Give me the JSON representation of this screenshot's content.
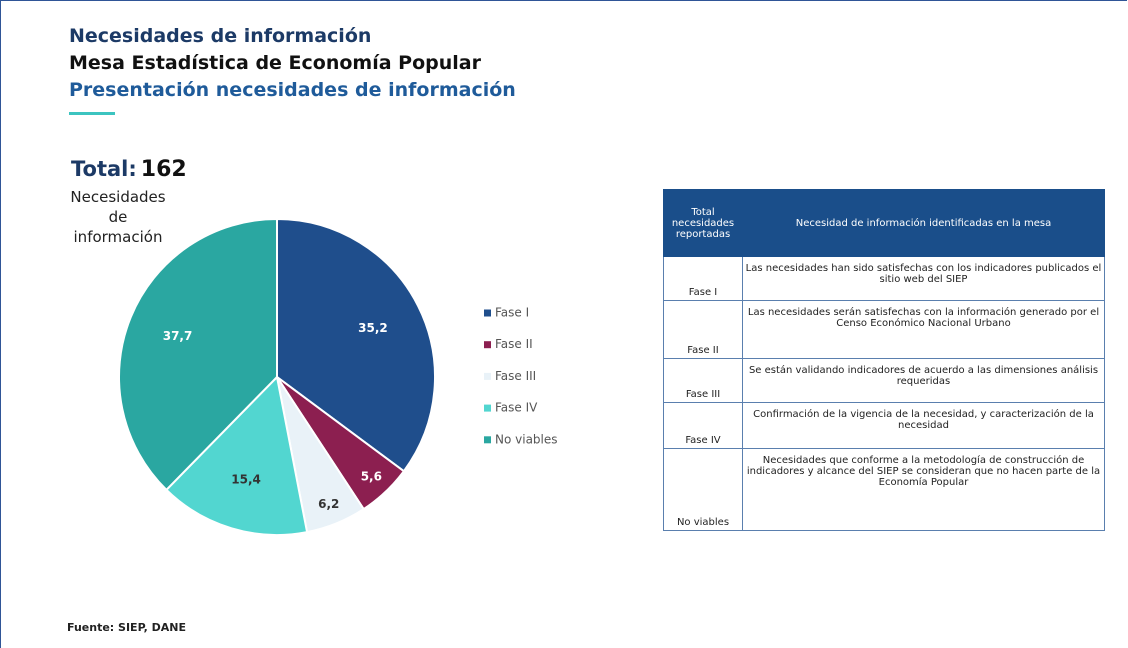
{
  "header": {
    "title": "Necesidades de información",
    "subtitle": "Mesa Estadística de Economía Popular",
    "section": "Presentación necesidades de información"
  },
  "total": {
    "label": "Total:",
    "value": 162,
    "caption": "Necesidades de información"
  },
  "chart_data": {
    "type": "pie",
    "categories": [
      "Fase I",
      "Fase II",
      "Fase III",
      "Fase IV",
      "No viables"
    ],
    "values": [
      35.2,
      5.6,
      6.2,
      15.4,
      37.7
    ],
    "value_labels": [
      "35,2",
      "5,6",
      "6,2",
      "15,4",
      "37,7"
    ],
    "colors": [
      "#1f4e8c",
      "#8c1f50",
      "#e9f2f8",
      "#52d6d0",
      "#2aa7a1"
    ],
    "legend": "right"
  },
  "table": {
    "header": [
      "Total necesidades reportadas",
      "Necesidad de información identificadas en la mesa"
    ],
    "rows": [
      [
        "Fase I",
        "Las necesidades han sido satisfechas con los indicadores publicados el sitio web del SIEP"
      ],
      [
        "Fase II",
        "Las necesidades serán satisfechas con la información generado por el Censo Económico Nacional Urbano"
      ],
      [
        "Fase III",
        "Se están validando indicadores de acuerdo a las dimensiones análisis requeridas"
      ],
      [
        "Fase IV",
        "Confirmación de la vigencia de la necesidad, y caracterización de la necesidad"
      ],
      [
        "No viables",
        "Necesidades que conforme a la metodología de construcción de indicadores y alcance del SIEP se consideran que no hacen parte de la Economía Popular"
      ]
    ]
  },
  "footer": "Fuente: SIEP, DANE"
}
